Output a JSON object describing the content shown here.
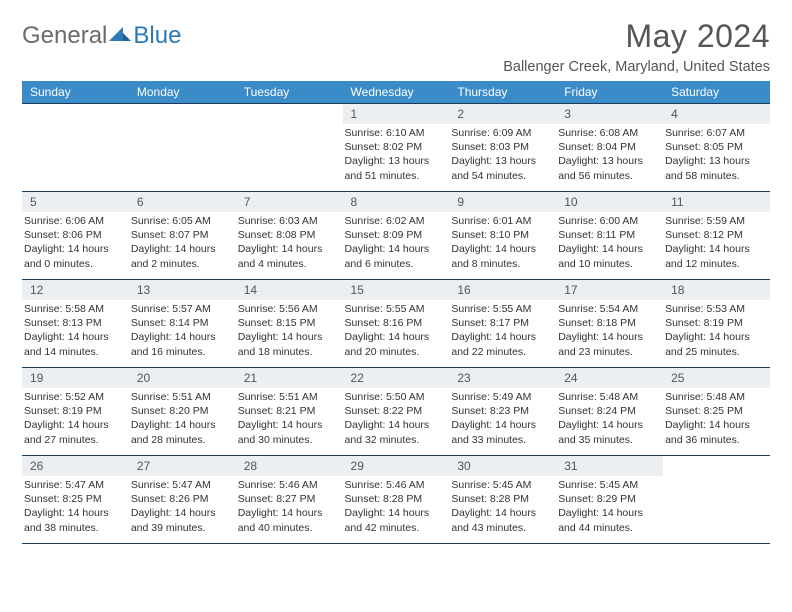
{
  "logo": {
    "general": "General",
    "blue": "Blue"
  },
  "title": "May 2024",
  "location": "Ballenger Creek, Maryland, United States",
  "colors": {
    "header_bg": "#3b8bc9",
    "header_text": "#ffffff",
    "daynum_bg": "#eceff1",
    "rule": "#1f3b5a",
    "logo_gray": "#6a6a6a",
    "logo_blue": "#2a7ab8"
  },
  "weekdays": [
    "Sunday",
    "Monday",
    "Tuesday",
    "Wednesday",
    "Thursday",
    "Friday",
    "Saturday"
  ],
  "weeks": [
    [
      null,
      null,
      null,
      {
        "d": "1",
        "sr": "6:10 AM",
        "ss": "8:02 PM",
        "dl": "13 hours and 51 minutes."
      },
      {
        "d": "2",
        "sr": "6:09 AM",
        "ss": "8:03 PM",
        "dl": "13 hours and 54 minutes."
      },
      {
        "d": "3",
        "sr": "6:08 AM",
        "ss": "8:04 PM",
        "dl": "13 hours and 56 minutes."
      },
      {
        "d": "4",
        "sr": "6:07 AM",
        "ss": "8:05 PM",
        "dl": "13 hours and 58 minutes."
      }
    ],
    [
      {
        "d": "5",
        "sr": "6:06 AM",
        "ss": "8:06 PM",
        "dl": "14 hours and 0 minutes."
      },
      {
        "d": "6",
        "sr": "6:05 AM",
        "ss": "8:07 PM",
        "dl": "14 hours and 2 minutes."
      },
      {
        "d": "7",
        "sr": "6:03 AM",
        "ss": "8:08 PM",
        "dl": "14 hours and 4 minutes."
      },
      {
        "d": "8",
        "sr": "6:02 AM",
        "ss": "8:09 PM",
        "dl": "14 hours and 6 minutes."
      },
      {
        "d": "9",
        "sr": "6:01 AM",
        "ss": "8:10 PM",
        "dl": "14 hours and 8 minutes."
      },
      {
        "d": "10",
        "sr": "6:00 AM",
        "ss": "8:11 PM",
        "dl": "14 hours and 10 minutes."
      },
      {
        "d": "11",
        "sr": "5:59 AM",
        "ss": "8:12 PM",
        "dl": "14 hours and 12 minutes."
      }
    ],
    [
      {
        "d": "12",
        "sr": "5:58 AM",
        "ss": "8:13 PM",
        "dl": "14 hours and 14 minutes."
      },
      {
        "d": "13",
        "sr": "5:57 AM",
        "ss": "8:14 PM",
        "dl": "14 hours and 16 minutes."
      },
      {
        "d": "14",
        "sr": "5:56 AM",
        "ss": "8:15 PM",
        "dl": "14 hours and 18 minutes."
      },
      {
        "d": "15",
        "sr": "5:55 AM",
        "ss": "8:16 PM",
        "dl": "14 hours and 20 minutes."
      },
      {
        "d": "16",
        "sr": "5:55 AM",
        "ss": "8:17 PM",
        "dl": "14 hours and 22 minutes."
      },
      {
        "d": "17",
        "sr": "5:54 AM",
        "ss": "8:18 PM",
        "dl": "14 hours and 23 minutes."
      },
      {
        "d": "18",
        "sr": "5:53 AM",
        "ss": "8:19 PM",
        "dl": "14 hours and 25 minutes."
      }
    ],
    [
      {
        "d": "19",
        "sr": "5:52 AM",
        "ss": "8:19 PM",
        "dl": "14 hours and 27 minutes."
      },
      {
        "d": "20",
        "sr": "5:51 AM",
        "ss": "8:20 PM",
        "dl": "14 hours and 28 minutes."
      },
      {
        "d": "21",
        "sr": "5:51 AM",
        "ss": "8:21 PM",
        "dl": "14 hours and 30 minutes."
      },
      {
        "d": "22",
        "sr": "5:50 AM",
        "ss": "8:22 PM",
        "dl": "14 hours and 32 minutes."
      },
      {
        "d": "23",
        "sr": "5:49 AM",
        "ss": "8:23 PM",
        "dl": "14 hours and 33 minutes."
      },
      {
        "d": "24",
        "sr": "5:48 AM",
        "ss": "8:24 PM",
        "dl": "14 hours and 35 minutes."
      },
      {
        "d": "25",
        "sr": "5:48 AM",
        "ss": "8:25 PM",
        "dl": "14 hours and 36 minutes."
      }
    ],
    [
      {
        "d": "26",
        "sr": "5:47 AM",
        "ss": "8:25 PM",
        "dl": "14 hours and 38 minutes."
      },
      {
        "d": "27",
        "sr": "5:47 AM",
        "ss": "8:26 PM",
        "dl": "14 hours and 39 minutes."
      },
      {
        "d": "28",
        "sr": "5:46 AM",
        "ss": "8:27 PM",
        "dl": "14 hours and 40 minutes."
      },
      {
        "d": "29",
        "sr": "5:46 AM",
        "ss": "8:28 PM",
        "dl": "14 hours and 42 minutes."
      },
      {
        "d": "30",
        "sr": "5:45 AM",
        "ss": "8:28 PM",
        "dl": "14 hours and 43 minutes."
      },
      {
        "d": "31",
        "sr": "5:45 AM",
        "ss": "8:29 PM",
        "dl": "14 hours and 44 minutes."
      },
      null
    ]
  ],
  "labels": {
    "sunrise": "Sunrise:",
    "sunset": "Sunset:",
    "daylight": "Daylight:"
  }
}
